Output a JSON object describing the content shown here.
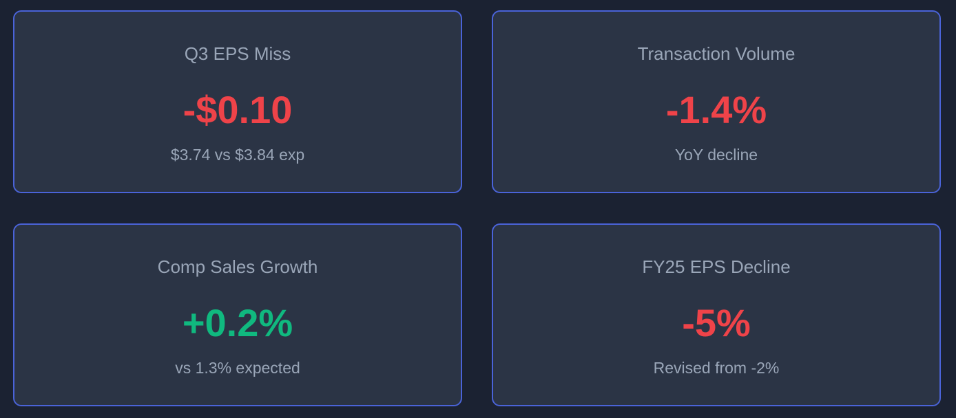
{
  "colors": {
    "negative": "#ef4349",
    "positive": "#10b97f"
  },
  "cards": [
    {
      "title": "Q3 EPS Miss",
      "value": "-$0.10",
      "subtitle": "$3.74 vs $3.84 exp",
      "tone": "negative"
    },
    {
      "title": "Transaction Volume",
      "value": "-1.4%",
      "subtitle": "YoY decline",
      "tone": "negative"
    },
    {
      "title": "Comp Sales Growth",
      "value": "+0.2%",
      "subtitle": "vs 1.3% expected",
      "tone": "positive"
    },
    {
      "title": "FY25 EPS Decline",
      "value": "-5%",
      "subtitle": "Revised from -2%",
      "tone": "negative"
    }
  ]
}
